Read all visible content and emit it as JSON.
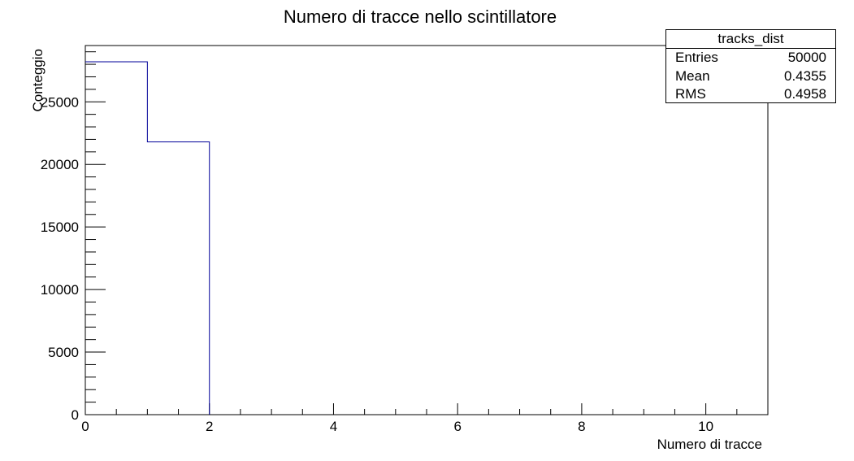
{
  "chart_data": {
    "type": "bar",
    "title": "Numero di tracce nello scintillatore",
    "xlabel": "Numero di tracce",
    "ylabel": "Conteggio",
    "bin_edges": [
      0,
      1,
      2
    ],
    "values": [
      28200,
      21800
    ],
    "xlim": [
      0,
      11
    ],
    "ylim": [
      0,
      29500
    ],
    "x_ticks": [
      0,
      2,
      4,
      6,
      8,
      10
    ],
    "y_ticks": [
      0,
      5000,
      10000,
      15000,
      20000,
      25000
    ],
    "line_color": "#000099",
    "grid": false
  },
  "stats": {
    "name": "tracks_dist",
    "rows": [
      {
        "label": "Entries",
        "value": "50000"
      },
      {
        "label": "Mean",
        "value": "0.4355"
      },
      {
        "label": "RMS",
        "value": "0.4958"
      }
    ]
  }
}
